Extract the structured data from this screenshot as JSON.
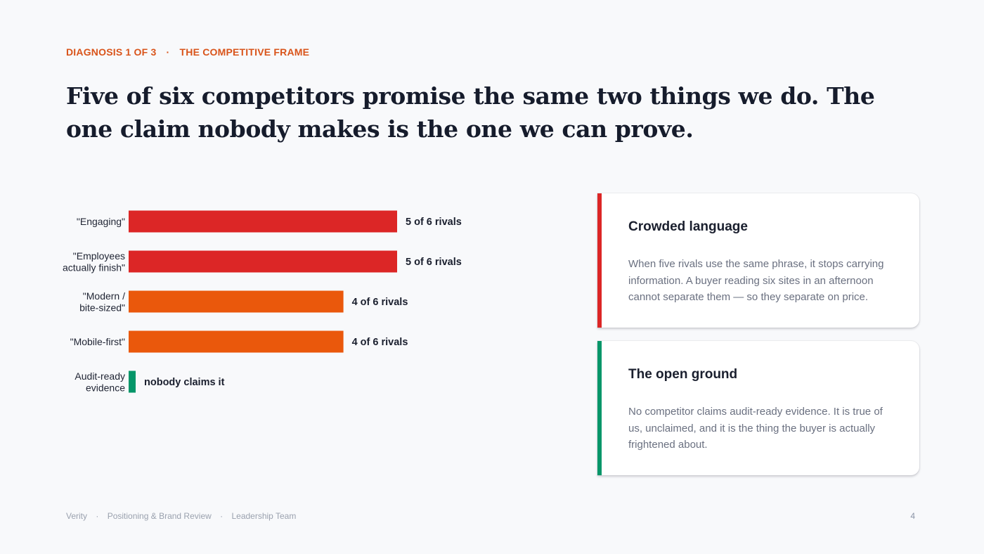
{
  "eyebrow": {
    "section": "DIAGNOSIS 1 OF 3",
    "separator": "·",
    "topic": "THE COMPETITIVE FRAME",
    "color": "#d9541a"
  },
  "headline": "Five of six competitors promise the same two things we do. The one claim nobody makes is the one we can prove.",
  "chart_data": {
    "type": "bar",
    "orientation": "horizontal",
    "categories": [
      [
        "\"Engaging\""
      ],
      [
        "\"Employees",
        "actually finish\""
      ],
      [
        "\"Modern /",
        "bite-sized\""
      ],
      [
        "\"Mobile-first\""
      ],
      [
        "Audit-ready",
        "evidence"
      ]
    ],
    "values": [
      5,
      5,
      4,
      4,
      0
    ],
    "value_labels": [
      "5 of 6 rivals",
      "5 of 6 rivals",
      "4 of 6 rivals",
      "4 of 6 rivals",
      "nobody claims it"
    ],
    "bar_colors": [
      "#dc2626",
      "#dc2626",
      "#ea580c",
      "#ea580c",
      "#059669"
    ],
    "xlim": [
      0,
      6
    ],
    "grid": false,
    "legend": "none"
  },
  "cards": [
    {
      "title": "Crowded language",
      "body": "When five rivals use the same phrase, it stops carrying information. A buyer reading six sites in an afternoon cannot separate them — so they separate on price.",
      "accent": "#dc2626"
    },
    {
      "title": "The open ground",
      "body": "No competitor claims audit-ready evidence. It is true of us, unclaimed, and it is the thing the buyer is actually frightened about.",
      "accent": "#059669"
    }
  ],
  "footer": {
    "brand": "Verity",
    "deck": "Positioning & Brand Review",
    "audience": "Leadership Team",
    "separator": "·",
    "page": "4"
  }
}
